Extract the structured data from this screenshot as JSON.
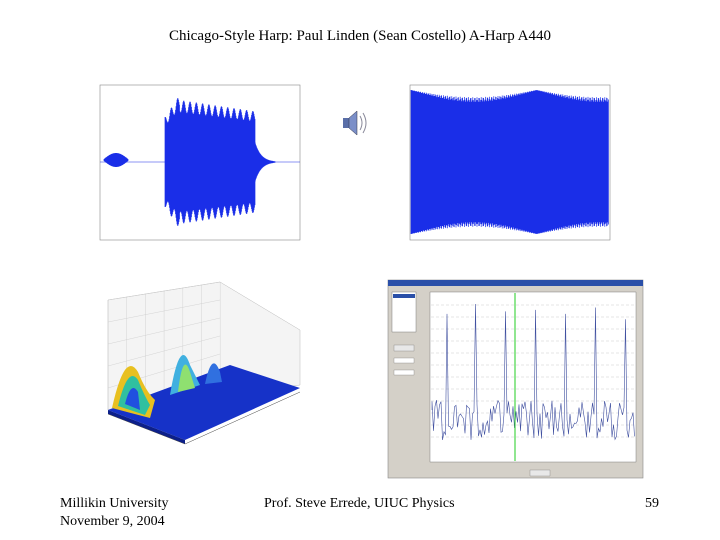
{
  "title": "Chicago-Style Harp: Paul Linden (Sean Costello) A-Harp A440",
  "footer": {
    "left": [
      "Millikin University",
      "November 9, 2004"
    ],
    "center": "Prof. Steve Errede, UIUC Physics",
    "page": "59"
  }
}
